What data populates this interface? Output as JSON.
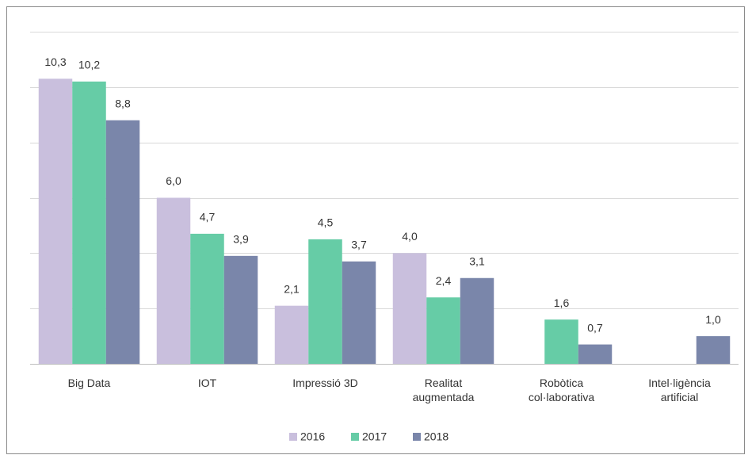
{
  "chart_data": {
    "type": "bar",
    "categories": [
      "Big Data",
      "IOT",
      "Impressió 3D",
      "Realitat\naugmentada",
      "Robòtica\ncol·laborativa",
      "Intel·ligència\nartificial"
    ],
    "series": [
      {
        "name": "2016",
        "color": "#c9bfdd",
        "values": [
          10.3,
          6.0,
          2.1,
          4.0,
          null,
          null
        ],
        "value_labels": [
          "10,3",
          "6,0",
          "2,1",
          "4,0",
          null,
          null
        ]
      },
      {
        "name": "2017",
        "color": "#66cca6",
        "values": [
          10.2,
          4.7,
          4.5,
          2.4,
          1.6,
          null
        ],
        "value_labels": [
          "10,2",
          "4,7",
          "4,5",
          "2,4",
          "1,6",
          null
        ]
      },
      {
        "name": "2018",
        "color": "#7a86aa",
        "values": [
          8.8,
          3.9,
          3.7,
          3.1,
          0.7,
          1.0
        ],
        "value_labels": [
          "8,8",
          "3,9",
          "3,7",
          "3,1",
          "0,7",
          "1,0"
        ]
      }
    ],
    "ylim": [
      0,
      12
    ],
    "yticks": [
      0,
      2,
      4,
      6,
      8,
      10,
      12
    ],
    "grid": true,
    "legend": "bottom"
  }
}
